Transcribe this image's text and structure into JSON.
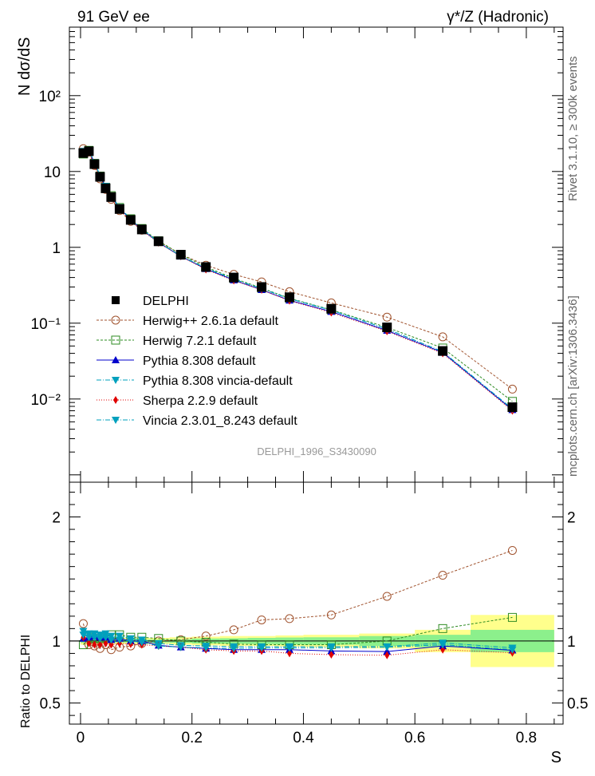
{
  "header": {
    "left": "91 GeV ee",
    "right": "γ*/Z (Hadronic)"
  },
  "side_labels": {
    "rivet": "Rivet 3.1.10, ≥ 300k events",
    "mcplots": "mcplots.cern.ch [arXiv:1306.3436]"
  },
  "watermark": "DELPHI_1996_S3430090",
  "colors": {
    "data": "#000000",
    "herwigpp": "#a0522d",
    "herwig7": "#2e8b22",
    "pythia": "#0000cc",
    "pythia_vincia": "#00a0bd",
    "sherpa": "#e00000",
    "vincia": "#00a0bd",
    "band_outer": "#ffff8c",
    "band_inner": "#8cf08c"
  },
  "chart_data": [
    {
      "type": "line",
      "panel": "main",
      "ylabel": "N dσ/dS",
      "yscale": "log",
      "xlim": [
        -0.02,
        0.866
      ],
      "ylim": [
        0.0008,
        800
      ],
      "y_tick_labels": [
        "10⁻²",
        "10⁻¹",
        "1",
        "10",
        "10²"
      ],
      "x": [
        0.005,
        0.015,
        0.025,
        0.035,
        0.045,
        0.055,
        0.07,
        0.09,
        0.11,
        0.14,
        0.18,
        0.225,
        0.275,
        0.325,
        0.375,
        0.45,
        0.55,
        0.65,
        0.775
      ],
      "series": [
        {
          "name": "DELPHI",
          "style": "data",
          "marker": "filled-square",
          "values": [
            17.5,
            18.5,
            12.5,
            8.5,
            6.0,
            4.6,
            3.2,
            2.3,
            1.72,
            1.2,
            0.8,
            0.55,
            0.4,
            0.3,
            0.22,
            0.155,
            0.088,
            0.043,
            0.0078
          ]
        },
        {
          "name": "Herwig++ 2.6.1a default",
          "style": "herwigpp",
          "marker": "open-circle",
          "dash": "3,2",
          "values": [
            20.0,
            18.0,
            12.0,
            8.0,
            5.8,
            4.3,
            3.05,
            2.2,
            1.68,
            1.2,
            0.81,
            0.58,
            0.44,
            0.35,
            0.26,
            0.185,
            0.12,
            0.066,
            0.0135
          ]
        },
        {
          "name": "Herwig 7.2.1 default",
          "style": "herwig7",
          "marker": "open-square",
          "dash": "3,2",
          "values": [
            17.0,
            19.0,
            12.8,
            8.7,
            6.2,
            4.8,
            3.35,
            2.38,
            1.77,
            1.22,
            0.805,
            0.55,
            0.39,
            0.29,
            0.213,
            0.15,
            0.088,
            0.047,
            0.0093
          ]
        },
        {
          "name": "Pythia 8.308 default",
          "style": "pythia",
          "marker": "filled-triangle-up",
          "dash": "",
          "values": [
            18.0,
            19.0,
            13.0,
            8.8,
            6.3,
            4.7,
            3.3,
            2.3,
            1.72,
            1.16,
            0.76,
            0.52,
            0.37,
            0.275,
            0.2,
            0.142,
            0.08,
            0.041,
            0.0072
          ]
        },
        {
          "name": "Pythia 8.308 vincia-default",
          "style": "pythia_vincia",
          "marker": "filled-triangle-down",
          "dash": "6,2,1,2",
          "values": [
            18.5,
            19.2,
            13.1,
            8.9,
            6.4,
            4.8,
            3.35,
            2.35,
            1.74,
            1.17,
            0.77,
            0.53,
            0.38,
            0.285,
            0.21,
            0.148,
            0.084,
            0.042,
            0.0074
          ]
        },
        {
          "name": "Sherpa 2.2.9 default",
          "style": "sherpa",
          "marker": "filled-diamond",
          "dash": "1,2",
          "values": [
            18.0,
            18.0,
            12.0,
            8.2,
            5.85,
            4.45,
            3.15,
            2.25,
            1.68,
            1.15,
            0.76,
            0.51,
            0.365,
            0.275,
            0.198,
            0.138,
            0.078,
            0.04,
            0.007
          ]
        },
        {
          "name": "Vincia 2.3.01_8.243 default",
          "style": "vincia",
          "marker": "filled-triangle-down",
          "dash": "6,2,1,2",
          "values": [
            18.5,
            19.2,
            13.1,
            8.9,
            6.4,
            4.8,
            3.35,
            2.35,
            1.74,
            1.17,
            0.77,
            0.53,
            0.38,
            0.285,
            0.21,
            0.148,
            0.084,
            0.042,
            0.0074
          ]
        }
      ]
    },
    {
      "type": "line",
      "panel": "ratio",
      "ylabel": "Ratio to DELPHI",
      "xlabel": "S",
      "xlim": [
        -0.02,
        0.866
      ],
      "ylim": [
        0.33,
        2.28
      ],
      "y_ticks": [
        0.5,
        1,
        2
      ],
      "y_tick_labels": [
        "0.5",
        "1",
        "2"
      ],
      "x_ticks": [
        0,
        0.2,
        0.4,
        0.6,
        0.8
      ],
      "x_tick_labels": [
        "0",
        "0.2",
        "0.4",
        "0.6",
        "0.8"
      ],
      "x": [
        0.005,
        0.015,
        0.025,
        0.035,
        0.045,
        0.055,
        0.07,
        0.09,
        0.11,
        0.14,
        0.18,
        0.225,
        0.275,
        0.325,
        0.375,
        0.45,
        0.55,
        0.65,
        0.775
      ],
      "uncertainty_bands": {
        "edges": [
          0.0,
          0.01,
          0.02,
          0.03,
          0.04,
          0.05,
          0.06,
          0.08,
          0.1,
          0.12,
          0.16,
          0.2,
          0.25,
          0.3,
          0.35,
          0.4,
          0.5,
          0.6,
          0.7,
          0.85
        ],
        "outer": [
          0.03,
          0.03,
          0.025,
          0.025,
          0.025,
          0.025,
          0.025,
          0.025,
          0.025,
          0.025,
          0.03,
          0.035,
          0.04,
          0.04,
          0.045,
          0.05,
          0.06,
          0.09,
          0.21
        ],
        "inner": [
          0.015,
          0.015,
          0.012,
          0.012,
          0.012,
          0.012,
          0.012,
          0.012,
          0.012,
          0.012,
          0.015,
          0.02,
          0.022,
          0.025,
          0.028,
          0.03,
          0.04,
          0.05,
          0.09
        ]
      },
      "series": [
        {
          "name": "Herwig++ 2.6.1a default",
          "style": "herwigpp",
          "marker": "open-circle",
          "dash": "3,2",
          "values": [
            1.14,
            0.97,
            0.96,
            0.94,
            0.97,
            0.93,
            0.95,
            0.96,
            0.98,
            1.0,
            1.01,
            1.04,
            1.09,
            1.17,
            1.18,
            1.21,
            1.36,
            1.53,
            1.73
          ]
        },
        {
          "name": "Herwig 7.2.1 default",
          "style": "herwig7",
          "marker": "open-square",
          "dash": "3,2",
          "values": [
            0.97,
            1.03,
            1.02,
            1.02,
            1.03,
            1.05,
            1.05,
            1.03,
            1.03,
            1.02,
            1.0,
            0.99,
            0.975,
            0.97,
            0.97,
            0.97,
            1.0,
            1.1,
            1.19
          ]
        },
        {
          "name": "Pythia 8.308 default",
          "style": "pythia",
          "marker": "filled-triangle-up",
          "dash": "",
          "values": [
            1.02,
            1.03,
            1.04,
            1.03,
            1.03,
            1.01,
            1.02,
            1.0,
            1.0,
            0.965,
            0.95,
            0.94,
            0.93,
            0.93,
            0.93,
            0.92,
            0.915,
            0.96,
            0.925
          ]
        },
        {
          "name": "Pythia 8.308 vincia-default",
          "style": "pythia_vincia",
          "marker": "filled-triangle-down",
          "dash": "6,2,1,2",
          "values": [
            1.08,
            1.06,
            1.06,
            1.05,
            1.06,
            1.04,
            1.04,
            1.02,
            1.01,
            0.98,
            0.965,
            0.96,
            0.955,
            0.955,
            0.955,
            0.955,
            0.955,
            0.985,
            0.945
          ]
        },
        {
          "name": "Sherpa 2.2.9 default",
          "style": "sherpa",
          "marker": "filled-diamond",
          "dash": "1,2",
          "values": [
            1.03,
            0.98,
            0.97,
            0.97,
            0.98,
            0.97,
            0.98,
            0.975,
            0.97,
            0.96,
            0.95,
            0.93,
            0.92,
            0.92,
            0.9,
            0.89,
            0.885,
            0.93,
            0.905
          ]
        },
        {
          "name": "Vincia 2.3.01_8.243 default",
          "style": "vincia",
          "marker": "filled-triangle-down",
          "dash": "6,2,1,2",
          "values": [
            1.05,
            1.03,
            1.03,
            1.02,
            1.03,
            1.01,
            1.01,
            1.0,
            0.99,
            0.96,
            0.95,
            0.945,
            0.94,
            0.945,
            0.945,
            0.945,
            0.95,
            0.97,
            0.93
          ]
        }
      ]
    }
  ]
}
